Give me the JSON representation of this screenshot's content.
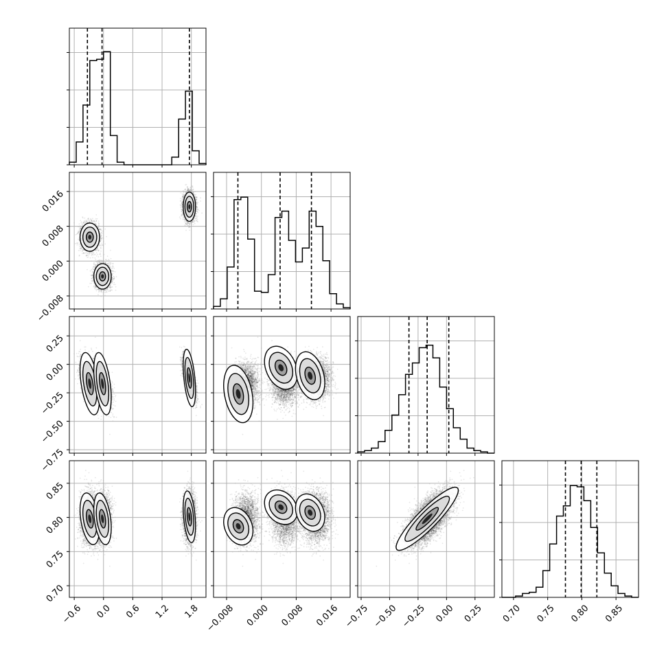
{
  "chart_data": {
    "type": "corner",
    "parameters": [
      "p0",
      "p1",
      "p2",
      "p3"
    ],
    "ranges": {
      "p0": [
        -0.7,
        2.1
      ],
      "p1": [
        -0.011,
        0.0204
      ],
      "p2": [
        -0.78,
        0.42
      ],
      "p3": [
        0.683,
        0.883
      ]
    },
    "ticks": {
      "p0": [
        -0.6,
        0.0,
        0.6,
        1.2,
        1.8
      ],
      "p1": [
        -0.008,
        0.0,
        0.008,
        0.016
      ],
      "p2": [
        -0.75,
        -0.5,
        -0.25,
        0.0,
        0.25
      ],
      "p3": [
        0.7,
        0.75,
        0.8,
        0.85
      ]
    },
    "tick_labels": {
      "p0": [
        "−0.6",
        "0.0",
        "0.6",
        "1.2",
        "1.8"
      ],
      "p1": [
        "−0.008",
        "0.000",
        "0.008",
        "0.016"
      ],
      "p2": [
        "−0.75",
        "−0.50",
        "−0.25",
        "0.00",
        "0.25"
      ],
      "p3": [
        "0.70",
        "0.75",
        "0.80",
        "0.85"
      ]
    },
    "quantiles": {
      "p0": [
        -0.33,
        -0.03,
        1.76
      ],
      "p1": [
        -0.0054,
        0.0043,
        0.0115
      ],
      "p2": [
        -0.33,
        -0.17,
        0.02
      ],
      "p3": [
        0.776,
        0.799,
        0.822
      ]
    },
    "histograms": {
      "p0": {
        "x0": -0.7,
        "x1": 2.1,
        "counts": [
          0.02,
          0.18,
          0.47,
          0.82,
          0.83,
          0.89,
          0.23,
          0.02,
          0,
          0,
          0,
          0,
          0,
          0,
          0,
          0.06,
          0.36,
          0.58,
          0.11,
          0.01
        ]
      },
      "p1": {
        "x0": -0.011,
        "x1": 0.0204,
        "counts": [
          0.02,
          0.08,
          0.33,
          0.86,
          0.88,
          0.55,
          0.14,
          0.13,
          0.27,
          0.72,
          0.77,
          0.54,
          0.37,
          0.48,
          0.77,
          0.65,
          0.38,
          0.12,
          0.04,
          0.01
        ]
      },
      "p2": {
        "x0": -0.78,
        "x1": 0.42,
        "counts": [
          0.01,
          0.02,
          0.04,
          0.09,
          0.18,
          0.3,
          0.46,
          0.62,
          0.71,
          0.83,
          0.85,
          0.75,
          0.52,
          0.35,
          0.2,
          0.11,
          0.04,
          0.02,
          0.01,
          0
        ]
      },
      "p3": {
        "x0": 0.683,
        "x1": 0.883,
        "counts": [
          0,
          0,
          0.01,
          0.03,
          0.04,
          0.08,
          0.21,
          0.42,
          0.64,
          0.72,
          0.88,
          0.87,
          0.76,
          0.55,
          0.35,
          0.19,
          0.09,
          0.03,
          0.01,
          0
        ]
      }
    },
    "clusters": [
      {
        "p0": -0.28,
        "p1": 0.0055,
        "p2": -0.17,
        "p3": 0.798,
        "s0": 0.095,
        "s1": 0.00155,
        "s2": 0.13,
        "s3": 0.018
      },
      {
        "p0": -0.02,
        "p1": -0.0035,
        "p2": -0.17,
        "p3": 0.798,
        "s0": 0.085,
        "s1": 0.0014,
        "s2": 0.13,
        "s3": 0.018
      },
      {
        "p0": 1.76,
        "p1": 0.0125,
        "p2": -0.12,
        "p3": 0.801,
        "s0": 0.06,
        "s1": 0.0016,
        "s2": 0.12,
        "s3": 0.018
      }
    ],
    "pair_2d_modes": {
      "p1_p2": [
        {
          "x": -0.0053,
          "y": -0.26,
          "sx": 0.0016,
          "sy": 0.12
        },
        {
          "x": 0.0045,
          "y": -0.03,
          "sx": 0.0018,
          "sy": 0.09
        },
        {
          "x": 0.0112,
          "y": -0.1,
          "sx": 0.0016,
          "sy": 0.1
        }
      ],
      "p1_p3": [
        {
          "x": -0.0053,
          "y": 0.787,
          "sx": 0.0016,
          "sy": 0.013
        },
        {
          "x": 0.0045,
          "y": 0.815,
          "sx": 0.0018,
          "sy": 0.012
        },
        {
          "x": 0.0112,
          "y": 0.807,
          "sx": 0.0016,
          "sy": 0.013
        }
      ],
      "p2_p3": {
        "mean_x": -0.17,
        "mean_y": 0.798,
        "sx": 0.13,
        "sy": 0.022,
        "corr": 0.9
      }
    },
    "grid": true,
    "contour_levels": 3,
    "axis_labels": []
  }
}
